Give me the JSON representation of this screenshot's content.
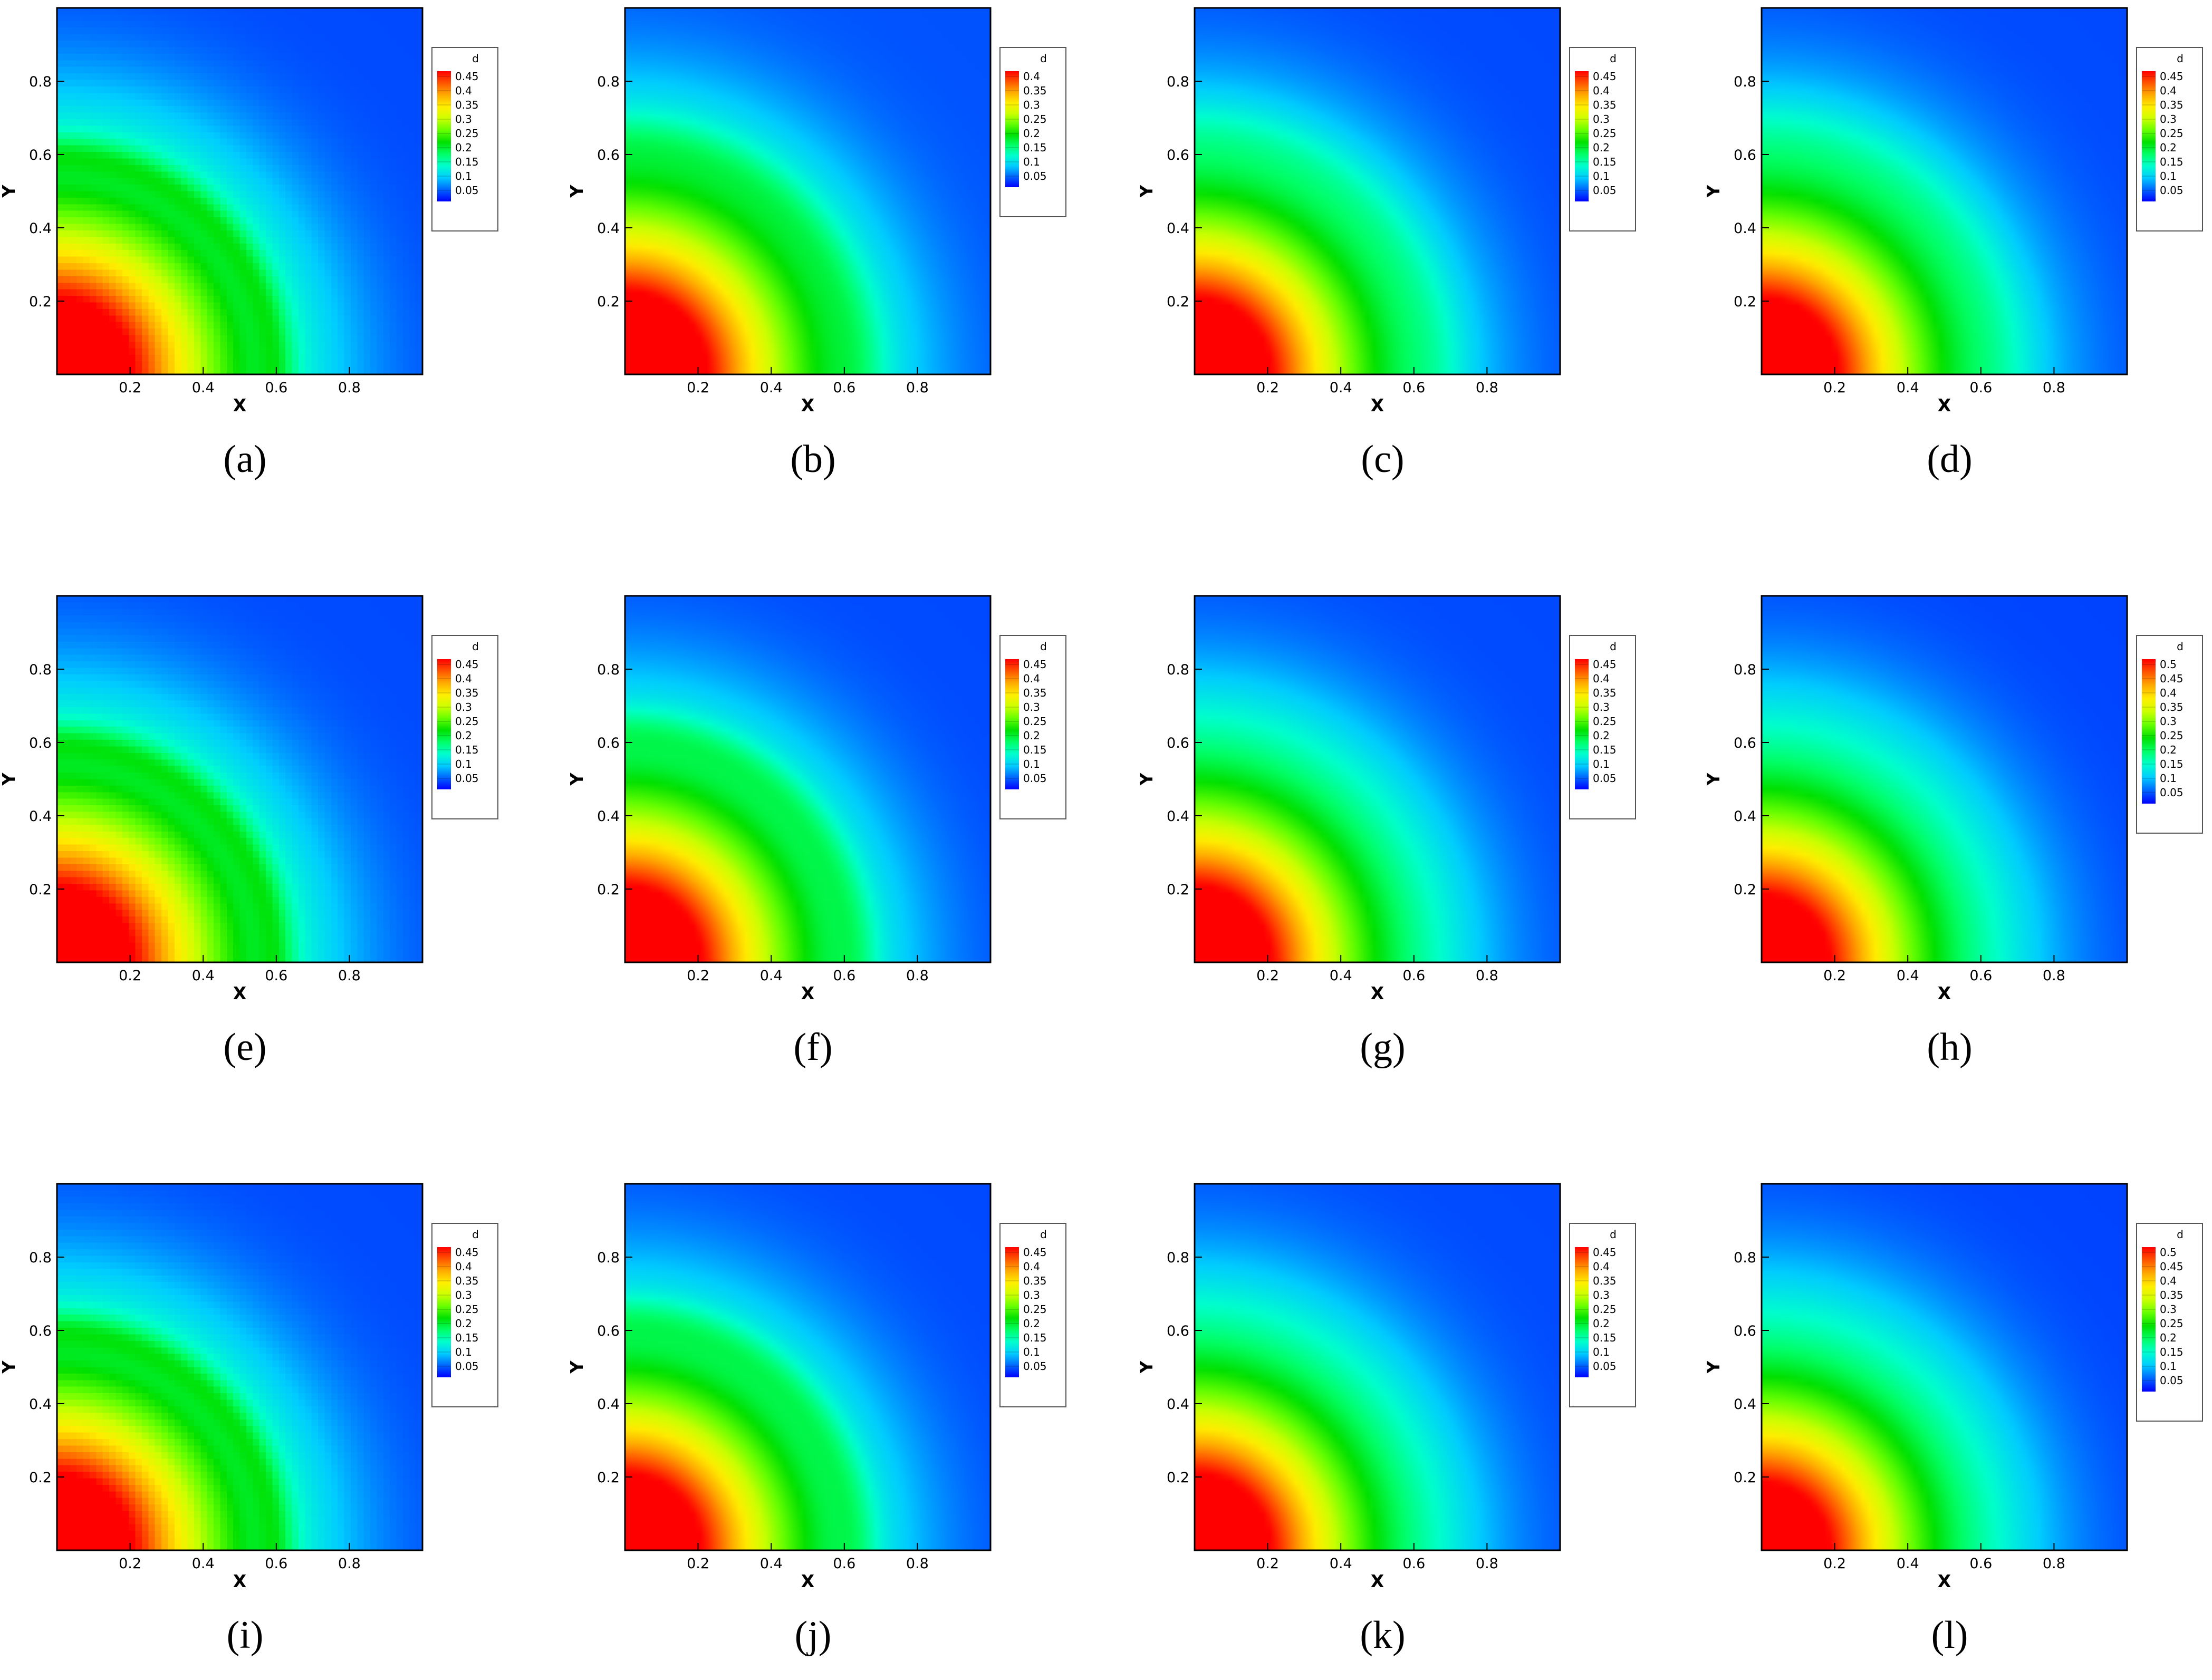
{
  "colormap": [
    "#0000ff",
    "#0066ff",
    "#00ccff",
    "#00ffcc",
    "#00ff66",
    "#00e000",
    "#66ff00",
    "#ccff00",
    "#ffee00",
    "#ffaa00",
    "#ff5500",
    "#ff0000"
  ],
  "chart_data": [
    {
      "type": "heatmap",
      "label": "(a)",
      "colorbar_title": "d",
      "colorbar_labels": [
        "0.45",
        "0.4",
        "0.35",
        "0.3",
        "0.25",
        "0.2",
        "0.15",
        "0.1",
        "0.05"
      ],
      "x_ticks": [
        "0.2",
        "0.4",
        "0.6",
        "0.8"
      ],
      "y_ticks": [
        "0.8",
        "0.6",
        "0.4",
        "0.2"
      ],
      "xlabel": "X",
      "ylabel": "Y",
      "xlim": [
        0,
        1
      ],
      "ylim": [
        0,
        1
      ],
      "vmax": 0.48,
      "center_value": 0.48,
      "front_radius": 0.6,
      "front_width": 0.05,
      "front_amplitude": 0.05,
      "blockiness": 0.9
    },
    {
      "type": "heatmap",
      "label": "(b)",
      "colorbar_title": "d",
      "colorbar_labels": [
        "0.4",
        "0.35",
        "0.3",
        "0.25",
        "0.2",
        "0.15",
        "0.1",
        "0.05"
      ],
      "x_ticks": [
        "0.2",
        "0.4",
        "0.6",
        "0.8"
      ],
      "y_ticks": [
        "0.8",
        "0.6",
        "0.4",
        "0.2"
      ],
      "xlabel": "X",
      "ylabel": "Y",
      "xlim": [
        0,
        1
      ],
      "ylim": [
        0,
        1
      ],
      "vmax": 0.43,
      "center_value": 0.43,
      "front_radius": 0.64,
      "front_width": 0.07,
      "front_amplitude": 0.025,
      "blockiness": 0.4
    },
    {
      "type": "heatmap",
      "label": "(c)",
      "colorbar_title": "d",
      "colorbar_labels": [
        "0.45",
        "0.4",
        "0.35",
        "0.3",
        "0.25",
        "0.2",
        "0.15",
        "0.1",
        "0.05"
      ],
      "x_ticks": [
        "0.2",
        "0.4",
        "0.6",
        "0.8"
      ],
      "y_ticks": [
        "0.8",
        "0.6",
        "0.4",
        "0.2"
      ],
      "xlabel": "X",
      "ylabel": "Y",
      "xlim": [
        0,
        1
      ],
      "ylim": [
        0,
        1
      ],
      "vmax": 0.48,
      "center_value": 0.48,
      "front_radius": 0.66,
      "front_width": 0.09,
      "front_amplitude": 0.02,
      "blockiness": 0.3
    },
    {
      "type": "heatmap",
      "label": "(d)",
      "colorbar_title": "d",
      "colorbar_labels": [
        "0.45",
        "0.4",
        "0.35",
        "0.3",
        "0.25",
        "0.2",
        "0.15",
        "0.1",
        "0.05"
      ],
      "x_ticks": [
        "0.2",
        "0.4",
        "0.6",
        "0.8"
      ],
      "y_ticks": [
        "0.8",
        "0.6",
        "0.4",
        "0.2"
      ],
      "xlabel": "X",
      "ylabel": "Y",
      "xlim": [
        0,
        1
      ],
      "ylim": [
        0,
        1
      ],
      "vmax": 0.48,
      "center_value": 0.48,
      "front_radius": 0.66,
      "front_width": 0.1,
      "front_amplitude": 0.018,
      "blockiness": 0.3
    },
    {
      "type": "heatmap",
      "label": "(e)",
      "colorbar_title": "d",
      "colorbar_labels": [
        "0.45",
        "0.4",
        "0.35",
        "0.3",
        "0.25",
        "0.2",
        "0.15",
        "0.1",
        "0.05"
      ],
      "x_ticks": [
        "0.2",
        "0.4",
        "0.6",
        "0.8"
      ],
      "y_ticks": [
        "0.8",
        "0.6",
        "0.4",
        "0.2"
      ],
      "xlabel": "X",
      "ylabel": "Y",
      "xlim": [
        0,
        1
      ],
      "ylim": [
        0,
        1
      ],
      "vmax": 0.48,
      "center_value": 0.48,
      "front_radius": 0.6,
      "front_width": 0.05,
      "front_amplitude": 0.05,
      "blockiness": 0.9
    },
    {
      "type": "heatmap",
      "label": "(f)",
      "colorbar_title": "d",
      "colorbar_labels": [
        "0.45",
        "0.4",
        "0.35",
        "0.3",
        "0.25",
        "0.2",
        "0.15",
        "0.1",
        "0.05"
      ],
      "x_ticks": [
        "0.2",
        "0.4",
        "0.6",
        "0.8"
      ],
      "y_ticks": [
        "0.8",
        "0.6",
        "0.4",
        "0.2"
      ],
      "xlabel": "X",
      "ylabel": "Y",
      "xlim": [
        0,
        1
      ],
      "ylim": [
        0,
        1
      ],
      "vmax": 0.48,
      "center_value": 0.48,
      "front_radius": 0.63,
      "front_width": 0.06,
      "front_amplitude": 0.035,
      "blockiness": 0.5
    },
    {
      "type": "heatmap",
      "label": "(g)",
      "colorbar_title": "d",
      "colorbar_labels": [
        "0.45",
        "0.4",
        "0.35",
        "0.3",
        "0.25",
        "0.2",
        "0.15",
        "0.1",
        "0.05"
      ],
      "x_ticks": [
        "0.2",
        "0.4",
        "0.6",
        "0.8"
      ],
      "y_ticks": [
        "0.8",
        "0.6",
        "0.4",
        "0.2"
      ],
      "xlabel": "X",
      "ylabel": "Y",
      "xlim": [
        0,
        1
      ],
      "ylim": [
        0,
        1
      ],
      "vmax": 0.48,
      "center_value": 0.48,
      "front_radius": 0.68,
      "front_width": 0.12,
      "front_amplitude": 0.005,
      "blockiness": 0.1
    },
    {
      "type": "heatmap",
      "label": "(h)",
      "colorbar_title": "d",
      "colorbar_labels": [
        "0.5",
        "0.45",
        "0.4",
        "0.35",
        "0.3",
        "0.25",
        "0.2",
        "0.15",
        "0.1",
        "0.05"
      ],
      "x_ticks": [
        "0.2",
        "0.4",
        "0.6",
        "0.8"
      ],
      "y_ticks": [
        "0.8",
        "0.6",
        "0.4",
        "0.2"
      ],
      "xlabel": "X",
      "ylabel": "Y",
      "xlim": [
        0,
        1
      ],
      "ylim": [
        0,
        1
      ],
      "vmax": 0.52,
      "center_value": 0.5,
      "front_radius": 0.68,
      "front_width": 0.12,
      "front_amplitude": 0.005,
      "blockiness": 0.1
    },
    {
      "type": "heatmap",
      "label": "(i)",
      "colorbar_title": "d",
      "colorbar_labels": [
        "0.45",
        "0.4",
        "0.35",
        "0.3",
        "0.25",
        "0.2",
        "0.15",
        "0.1",
        "0.05"
      ],
      "x_ticks": [
        "0.2",
        "0.4",
        "0.6",
        "0.8"
      ],
      "y_ticks": [
        "0.8",
        "0.6",
        "0.4",
        "0.2"
      ],
      "xlabel": "X",
      "ylabel": "Y",
      "xlim": [
        0,
        1
      ],
      "ylim": [
        0,
        1
      ],
      "vmax": 0.48,
      "center_value": 0.48,
      "front_radius": 0.6,
      "front_width": 0.05,
      "front_amplitude": 0.05,
      "blockiness": 0.9
    },
    {
      "type": "heatmap",
      "label": "(j)",
      "colorbar_title": "d",
      "colorbar_labels": [
        "0.45",
        "0.4",
        "0.35",
        "0.3",
        "0.25",
        "0.2",
        "0.15",
        "0.1",
        "0.05"
      ],
      "x_ticks": [
        "0.2",
        "0.4",
        "0.6",
        "0.8"
      ],
      "y_ticks": [
        "0.8",
        "0.6",
        "0.4",
        "0.2"
      ],
      "xlabel": "X",
      "ylabel": "Y",
      "xlim": [
        0,
        1
      ],
      "ylim": [
        0,
        1
      ],
      "vmax": 0.48,
      "center_value": 0.48,
      "front_radius": 0.63,
      "front_width": 0.06,
      "front_amplitude": 0.035,
      "blockiness": 0.5
    },
    {
      "type": "heatmap",
      "label": "(k)",
      "colorbar_title": "d",
      "colorbar_labels": [
        "0.45",
        "0.4",
        "0.35",
        "0.3",
        "0.25",
        "0.2",
        "0.15",
        "0.1",
        "0.05"
      ],
      "x_ticks": [
        "0.2",
        "0.4",
        "0.6",
        "0.8"
      ],
      "y_ticks": [
        "0.8",
        "0.6",
        "0.4",
        "0.2"
      ],
      "xlabel": "X",
      "ylabel": "Y",
      "xlim": [
        0,
        1
      ],
      "ylim": [
        0,
        1
      ],
      "vmax": 0.48,
      "center_value": 0.48,
      "front_radius": 0.68,
      "front_width": 0.12,
      "front_amplitude": 0.005,
      "blockiness": 0.1
    },
    {
      "type": "heatmap",
      "label": "(l)",
      "colorbar_title": "d",
      "colorbar_labels": [
        "0.5",
        "0.45",
        "0.4",
        "0.35",
        "0.3",
        "0.25",
        "0.2",
        "0.15",
        "0.1",
        "0.05"
      ],
      "x_ticks": [
        "0.2",
        "0.4",
        "0.6",
        "0.8"
      ],
      "y_ticks": [
        "0.8",
        "0.6",
        "0.4",
        "0.2"
      ],
      "xlabel": "X",
      "ylabel": "Y",
      "xlim": [
        0,
        1
      ],
      "ylim": [
        0,
        1
      ],
      "vmax": 0.52,
      "center_value": 0.5,
      "front_radius": 0.68,
      "front_width": 0.12,
      "front_amplitude": 0.005,
      "blockiness": 0.1
    }
  ]
}
